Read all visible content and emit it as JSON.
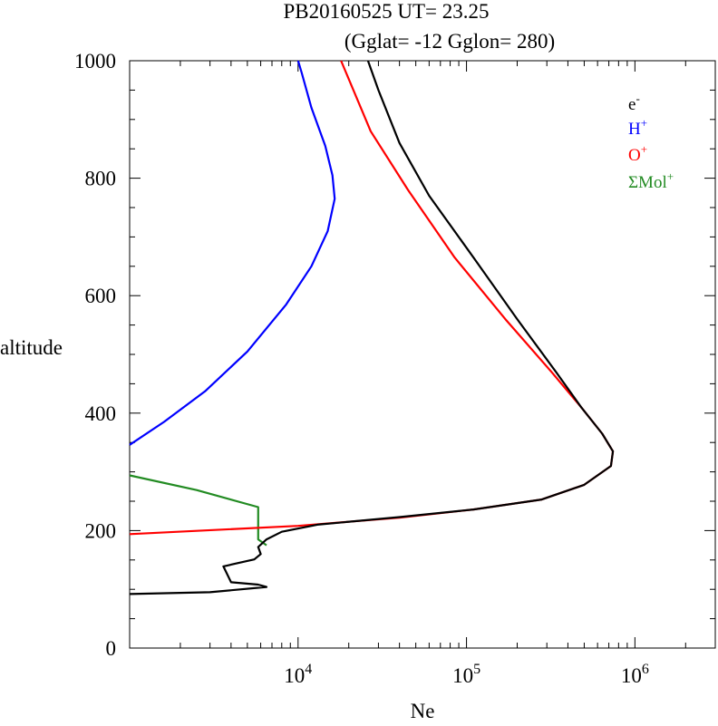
{
  "chart_data": {
    "type": "line",
    "title_line1": "PB20160525   UT=  23.25",
    "title_line2": "(Gglat= -12   Gglon=  280)",
    "xlabel": "Ne",
    "ylabel": "altitude",
    "x_scale": "log",
    "xlim": [
      1000,
      3000000
    ],
    "ylim": [
      0,
      1000
    ],
    "y_ticks": [
      0,
      200,
      400,
      600,
      800,
      1000
    ],
    "y_tick_labels": [
      "0",
      "200",
      "400",
      "600",
      "800",
      "1000"
    ],
    "x_ticks": [
      {
        "value": 10000,
        "base": "10",
        "exp": "4"
      },
      {
        "value": 100000,
        "base": "10",
        "exp": "5"
      },
      {
        "value": 1000000,
        "base": "10",
        "exp": "6"
      }
    ],
    "legend_position": "top-right",
    "grid": false,
    "series": [
      {
        "name": "e",
        "sup": "-",
        "color": "#000000",
        "points": [
          [
            1000,
            92
          ],
          [
            3000,
            95
          ],
          [
            6500,
            104
          ],
          [
            5800,
            108
          ],
          [
            4000,
            112
          ],
          [
            3600,
            139
          ],
          [
            5500,
            151
          ],
          [
            6000,
            160
          ],
          [
            5800,
            172
          ],
          [
            6500,
            185
          ],
          [
            8000,
            198
          ],
          [
            13000,
            210
          ],
          [
            40000,
            223
          ],
          [
            110000,
            236
          ],
          [
            280000,
            253
          ],
          [
            500000,
            278
          ],
          [
            720000,
            310
          ],
          [
            740000,
            335
          ],
          [
            640000,
            365
          ],
          [
            480000,
            410
          ],
          [
            340000,
            470
          ],
          [
            200000,
            560
          ],
          [
            110000,
            665
          ],
          [
            60000,
            770
          ],
          [
            40000,
            860
          ],
          [
            30000,
            950
          ],
          [
            26000,
            1000
          ]
        ]
      },
      {
        "name": "H",
        "sup": "+",
        "color": "#0000ff",
        "points": [
          [
            1000,
            346
          ],
          [
            1600,
            385
          ],
          [
            2800,
            437
          ],
          [
            5000,
            505
          ],
          [
            8500,
            585
          ],
          [
            12000,
            650
          ],
          [
            15000,
            710
          ],
          [
            16500,
            765
          ],
          [
            16000,
            805
          ],
          [
            14500,
            855
          ],
          [
            12000,
            920
          ],
          [
            10500,
            980
          ],
          [
            10000,
            1000
          ]
        ]
      },
      {
        "name": "O",
        "sup": "+",
        "color": "#ff0000",
        "points": [
          [
            1000,
            194
          ],
          [
            10000,
            208
          ],
          [
            40000,
            222
          ],
          [
            110000,
            236
          ],
          [
            280000,
            253
          ],
          [
            500000,
            278
          ],
          [
            720000,
            310
          ],
          [
            740000,
            335
          ],
          [
            640000,
            365
          ],
          [
            480000,
            410
          ],
          [
            320000,
            470
          ],
          [
            170000,
            560
          ],
          [
            85000,
            665
          ],
          [
            45000,
            780
          ],
          [
            27000,
            880
          ],
          [
            18000,
            1000
          ]
        ]
      },
      {
        "name": "ΣMol",
        "sup": "+",
        "color": "#228b22",
        "points": [
          [
            1000,
            294
          ],
          [
            2500,
            269
          ],
          [
            5800,
            240
          ],
          [
            5800,
            185
          ],
          [
            6500,
            175
          ]
        ]
      }
    ]
  }
}
